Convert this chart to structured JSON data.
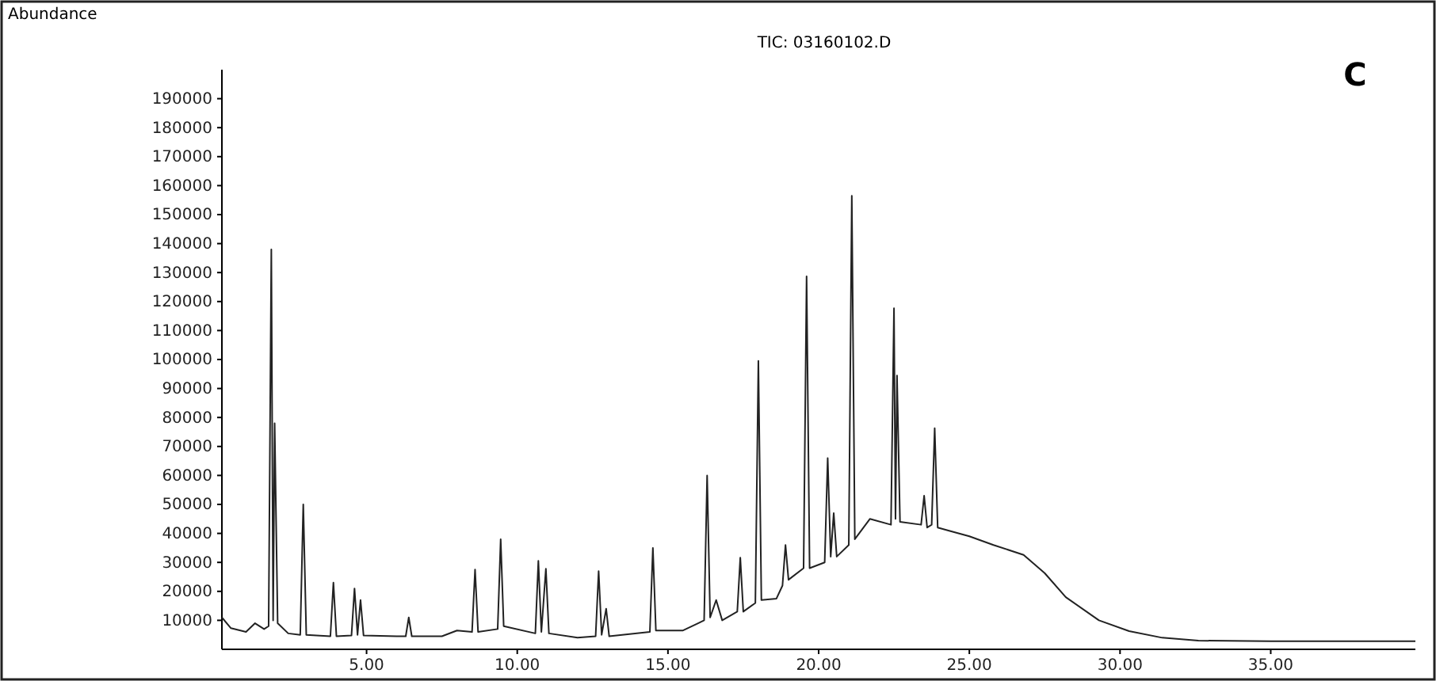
{
  "chart_data": {
    "type": "line",
    "title": "TIC: 03160102.D",
    "ylabel": "Abundance",
    "annotations": [
      "C"
    ],
    "x": [
      0.2,
      0.5,
      1.0,
      1.3,
      1.6,
      1.75,
      1.84,
      1.9,
      1.95,
      2.05,
      2.4,
      2.8,
      2.9,
      3.0,
      3.8,
      3.9,
      4.0,
      4.5,
      4.6,
      4.7,
      4.8,
      4.9,
      6.0,
      6.3,
      6.4,
      6.5,
      7.5,
      8.0,
      8.5,
      8.6,
      8.7,
      9.35,
      9.45,
      9.55,
      10.6,
      10.7,
      10.8,
      10.95,
      11.05,
      12.0,
      12.6,
      12.7,
      12.8,
      12.95,
      13.05,
      14.4,
      14.5,
      14.6,
      15.5,
      16.0,
      16.2,
      16.3,
      16.4,
      16.6,
      16.8,
      17.3,
      17.4,
      17.5,
      17.9,
      18.0,
      18.1,
      18.6,
      18.8,
      18.9,
      19.0,
      19.5,
      19.6,
      19.7,
      20.2,
      20.3,
      20.4,
      20.5,
      20.6,
      21.0,
      21.1,
      21.2,
      21.7,
      22.4,
      22.5,
      22.55,
      22.6,
      22.7,
      23.4,
      23.5,
      23.6,
      23.75,
      23.85,
      23.95,
      24.4,
      25.0,
      25.8,
      26.8,
      27.5,
      28.2,
      29.3,
      30.3,
      31.4,
      32.6,
      35.0,
      39.8
    ],
    "values": [
      11000,
      7300,
      6000,
      9000,
      7000,
      8000,
      138000,
      10000,
      78000,
      9000,
      5500,
      5000,
      50000,
      5000,
      4500,
      23000,
      4500,
      4800,
      21000,
      5000,
      17000,
      4800,
      4500,
      4500,
      11000,
      4500,
      4500,
      6500,
      6000,
      27500,
      6000,
      7000,
      38000,
      8000,
      5500,
      30500,
      6000,
      27800,
      5500,
      4000,
      4500,
      27000,
      5000,
      14000,
      4500,
      6000,
      35000,
      6500,
      6500,
      9000,
      10000,
      60000,
      11000,
      17000,
      10000,
      13000,
      31600,
      13000,
      16000,
      99500,
      17000,
      17500,
      22000,
      36000,
      24000,
      28000,
      128700,
      28000,
      30000,
      66000,
      32000,
      47000,
      32000,
      36000,
      156500,
      38000,
      45000,
      43000,
      117700,
      45000,
      94500,
      44000,
      43000,
      53000,
      42000,
      43000,
      76300,
      42000,
      40700,
      39000,
      36000,
      32600,
      26300,
      18000,
      10000,
      6300,
      4000,
      3000,
      2800,
      2800
    ],
    "color": "#222222",
    "xlim": [
      0.2,
      39.8
    ],
    "ylim": [
      0,
      200000
    ],
    "xticks": [
      {
        "value": 5,
        "label": "5.00"
      },
      {
        "value": 10,
        "label": "10.00"
      },
      {
        "value": 15,
        "label": "15.00"
      },
      {
        "value": 20,
        "label": "20.00"
      },
      {
        "value": 25,
        "label": "25.00"
      },
      {
        "value": 30,
        "label": "30.00"
      },
      {
        "value": 35,
        "label": "35.00"
      }
    ],
    "yticks": [
      10000,
      20000,
      30000,
      40000,
      50000,
      60000,
      70000,
      80000,
      90000,
      100000,
      110000,
      120000,
      130000,
      140000,
      150000,
      160000,
      170000,
      180000,
      190000
    ],
    "line_style": "solid"
  }
}
